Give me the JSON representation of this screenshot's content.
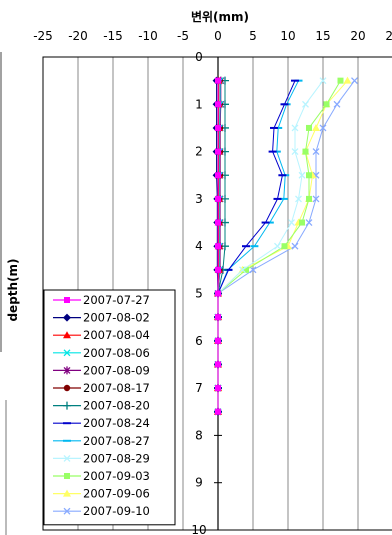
{
  "chart_data": {
    "type": "line",
    "title": "변위(mm)",
    "xlabel": "",
    "ylabel": "depth(m)",
    "xlim": [
      -25,
      25
    ],
    "ylim": [
      0,
      10
    ],
    "y_inverted": true,
    "x_axis_position": "top",
    "x_ticks": [
      "-25",
      "-20",
      "-15",
      "-10",
      "-5",
      "0",
      "5",
      "10",
      "15",
      "20",
      "25"
    ],
    "y_ticks": [
      "0",
      "1",
      "2",
      "3",
      "4",
      "5",
      "6",
      "7",
      "8",
      "9",
      "10"
    ],
    "grid": "vertical",
    "legend_position": "bottom-left",
    "series": [
      {
        "name": "2007-07-27",
        "color": "#ff00ff",
        "marker": "square",
        "points": [
          [
            0,
            0.5
          ],
          [
            0,
            1
          ],
          [
            0,
            1.5
          ],
          [
            0,
            2
          ],
          [
            0,
            2.5
          ],
          [
            0,
            3
          ],
          [
            0,
            3.5
          ],
          [
            0,
            4
          ],
          [
            0,
            4.5
          ],
          [
            0,
            5
          ],
          [
            0,
            5.5
          ],
          [
            0,
            6
          ],
          [
            0,
            6.5
          ],
          [
            0,
            7
          ],
          [
            0,
            7.5
          ]
        ]
      },
      {
        "name": "2007-08-02",
        "color": "#000080",
        "marker": "diamond",
        "points": [
          [
            -0.2,
            0.5
          ],
          [
            -0.2,
            1
          ],
          [
            -0.2,
            1.5
          ],
          [
            -0.2,
            2
          ],
          [
            -0.2,
            2.5
          ],
          [
            -0.1,
            3
          ],
          [
            -0.1,
            3.5
          ],
          [
            -0.1,
            4
          ],
          [
            -0.1,
            4.5
          ],
          [
            0,
            5
          ],
          [
            0,
            5.5
          ],
          [
            0,
            6
          ],
          [
            0,
            6.5
          ],
          [
            0,
            7
          ],
          [
            0,
            7.5
          ]
        ]
      },
      {
        "name": "2007-08-04",
        "color": "#ff0000",
        "marker": "triangle",
        "points": [
          [
            0.1,
            0.5
          ],
          [
            0.1,
            1
          ],
          [
            0.1,
            1.5
          ],
          [
            0.1,
            2
          ],
          [
            0.1,
            2.5
          ],
          [
            0.1,
            3
          ],
          [
            0.1,
            3.5
          ],
          [
            0.1,
            4
          ],
          [
            0.1,
            4.5
          ],
          [
            0,
            5
          ],
          [
            0,
            5.5
          ],
          [
            0,
            6
          ],
          [
            0,
            6.5
          ],
          [
            0,
            7
          ],
          [
            0,
            7.5
          ]
        ]
      },
      {
        "name": "2007-08-06",
        "color": "#00e5e5",
        "marker": "x",
        "points": [
          [
            0.3,
            0.5
          ],
          [
            0.3,
            1
          ],
          [
            0.2,
            1.5
          ],
          [
            0.2,
            2
          ],
          [
            0.2,
            2.5
          ],
          [
            0.2,
            3
          ],
          [
            0.2,
            3.5
          ],
          [
            0.2,
            4
          ],
          [
            0.2,
            4.5
          ],
          [
            0,
            5
          ],
          [
            0,
            5.5
          ],
          [
            0,
            6
          ],
          [
            0,
            6.5
          ],
          [
            0,
            7
          ],
          [
            0,
            7.5
          ]
        ]
      },
      {
        "name": "2007-08-09",
        "color": "#800080",
        "marker": "star",
        "points": [
          [
            0.4,
            0.5
          ],
          [
            0.4,
            1
          ],
          [
            0.3,
            1.5
          ],
          [
            0.3,
            2
          ],
          [
            0.3,
            2.5
          ],
          [
            0.3,
            3
          ],
          [
            0.3,
            3.5
          ],
          [
            0.3,
            4
          ],
          [
            0.3,
            4.5
          ],
          [
            0,
            5
          ],
          [
            0,
            5.5
          ],
          [
            0,
            6
          ],
          [
            0,
            6.5
          ],
          [
            0,
            7
          ],
          [
            0,
            7.5
          ]
        ]
      },
      {
        "name": "2007-08-17",
        "color": "#800000",
        "marker": "circle",
        "points": [
          [
            0.3,
            0.5
          ],
          [
            0.3,
            1
          ],
          [
            0.3,
            1.5
          ],
          [
            0.3,
            2
          ],
          [
            0.3,
            2.5
          ],
          [
            0.2,
            3
          ],
          [
            0.2,
            3.5
          ],
          [
            0.2,
            4
          ],
          [
            0.2,
            4.5
          ],
          [
            0,
            5
          ],
          [
            0,
            5.5
          ],
          [
            0,
            6
          ],
          [
            0,
            6.5
          ],
          [
            0,
            7
          ],
          [
            0,
            7.5
          ]
        ]
      },
      {
        "name": "2007-08-20",
        "color": "#008080",
        "marker": "plus",
        "points": [
          [
            1,
            0.5
          ],
          [
            1,
            1
          ],
          [
            1,
            1.5
          ],
          [
            1,
            2
          ],
          [
            1,
            2.5
          ],
          [
            1,
            3
          ],
          [
            1,
            3.5
          ],
          [
            1,
            4
          ],
          [
            0.7,
            4.5
          ],
          [
            0,
            5
          ],
          [
            0,
            5.5
          ],
          [
            0,
            6
          ],
          [
            0,
            6.5
          ],
          [
            0,
            7
          ],
          [
            0,
            7.5
          ]
        ]
      },
      {
        "name": "2007-08-24",
        "color": "#0000cc",
        "marker": "dash",
        "points": [
          [
            11,
            0.5
          ],
          [
            9.5,
            1
          ],
          [
            8,
            1.5
          ],
          [
            7.8,
            2
          ],
          [
            9.2,
            2.5
          ],
          [
            8.5,
            3
          ],
          [
            6.8,
            3.5
          ],
          [
            4,
            4
          ],
          [
            1.5,
            4.5
          ],
          [
            0,
            5
          ],
          [
            0,
            5.5
          ],
          [
            0,
            6
          ],
          [
            0,
            6.5
          ],
          [
            0,
            7
          ],
          [
            0,
            7.5
          ]
        ]
      },
      {
        "name": "2007-08-27",
        "color": "#00b8f0",
        "marker": "dash",
        "points": [
          [
            11.5,
            0.5
          ],
          [
            9.8,
            1
          ],
          [
            8.6,
            1.5
          ],
          [
            8.4,
            2
          ],
          [
            9.6,
            2.5
          ],
          [
            9.4,
            3
          ],
          [
            7.4,
            3.5
          ],
          [
            5.2,
            4
          ],
          [
            1.4,
            4.5
          ],
          [
            0,
            5
          ],
          [
            0,
            5.5
          ],
          [
            0,
            6
          ],
          [
            0,
            6.5
          ],
          [
            0,
            7
          ],
          [
            0,
            7.5
          ]
        ]
      },
      {
        "name": "2007-08-29",
        "color": "#b8f4ff",
        "marker": "x",
        "points": [
          [
            15,
            0.5
          ],
          [
            12.5,
            1
          ],
          [
            11,
            1.5
          ],
          [
            11,
            2
          ],
          [
            12,
            2.5
          ],
          [
            11.5,
            3
          ],
          [
            10.5,
            3.5
          ],
          [
            8.5,
            4
          ],
          [
            3.5,
            4.5
          ],
          [
            0,
            5
          ],
          [
            0,
            5.5
          ],
          [
            0,
            6
          ],
          [
            0,
            6.5
          ],
          [
            0,
            7
          ],
          [
            0,
            7.5
          ]
        ]
      },
      {
        "name": "2007-09-03",
        "color": "#99ff66",
        "marker": "square",
        "points": [
          [
            17.5,
            0.5
          ],
          [
            15.5,
            1
          ],
          [
            13,
            1.5
          ],
          [
            12.5,
            2
          ],
          [
            13,
            2.5
          ],
          [
            13,
            3
          ],
          [
            12,
            3.5
          ],
          [
            9.5,
            4
          ],
          [
            4,
            4.5
          ],
          [
            0,
            5
          ],
          [
            0,
            5.5
          ],
          [
            0,
            6
          ],
          [
            0,
            6.5
          ],
          [
            0,
            7
          ],
          [
            0,
            7.5
          ]
        ]
      },
      {
        "name": "2007-09-06",
        "color": "#ffff66",
        "marker": "triangle",
        "points": [
          [
            18.5,
            0.5
          ],
          [
            15.5,
            1
          ],
          [
            14,
            1.5
          ],
          [
            12.5,
            2
          ],
          [
            13.5,
            2.5
          ],
          [
            13,
            3
          ],
          [
            11.5,
            3.5
          ],
          [
            10,
            4
          ],
          [
            3.5,
            4.5
          ],
          [
            0,
            5
          ],
          [
            0,
            5.5
          ],
          [
            0,
            6
          ],
          [
            0,
            6.5
          ],
          [
            0,
            7
          ],
          [
            0,
            7.5
          ]
        ]
      },
      {
        "name": "2007-09-10",
        "color": "#88aaff",
        "marker": "x",
        "points": [
          [
            19.5,
            0.5
          ],
          [
            17,
            1
          ],
          [
            15,
            1.5
          ],
          [
            14,
            2
          ],
          [
            14,
            2.5
          ],
          [
            14,
            3
          ],
          [
            13,
            3.5
          ],
          [
            11,
            4
          ],
          [
            5,
            4.5
          ],
          [
            0,
            5
          ],
          [
            0,
            5.5
          ],
          [
            0,
            6
          ],
          [
            0,
            6.5
          ],
          [
            0,
            7
          ],
          [
            0,
            7.5
          ]
        ]
      }
    ]
  }
}
